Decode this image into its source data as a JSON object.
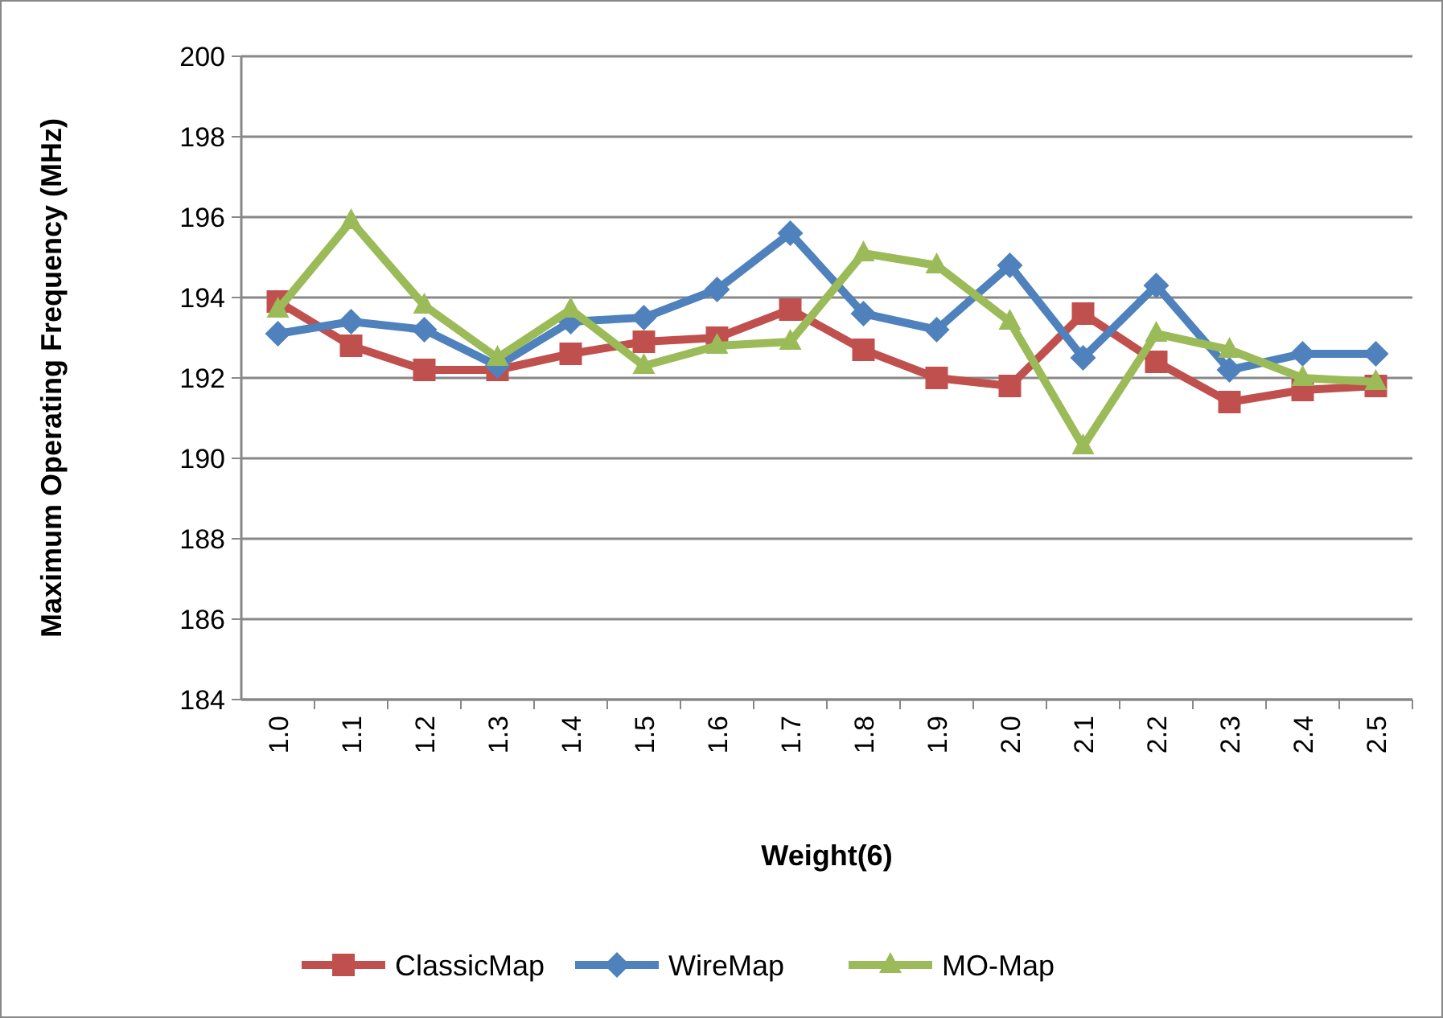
{
  "chart_data": {
    "type": "line",
    "xlabel": "Weight(6)",
    "ylabel": "Maximum Operating Frequency (MHz)",
    "categories": [
      "1.0",
      "1.1",
      "1.2",
      "1.3",
      "1.4",
      "1.5",
      "1.6",
      "1.7",
      "1.8",
      "1.9",
      "2.0",
      "2.1",
      "2.2",
      "2.3",
      "2.4",
      "2.5"
    ],
    "ylim": [
      184,
      200
    ],
    "yticks": [
      184,
      186,
      188,
      190,
      192,
      194,
      196,
      198,
      200
    ],
    "grid": "y",
    "legend": "bottom",
    "series": [
      {
        "name": "ClassicMap",
        "color": "#c0504d",
        "marker": "square",
        "values": [
          193.9,
          192.8,
          192.2,
          192.2,
          192.6,
          192.9,
          193.0,
          193.7,
          192.7,
          192.0,
          191.8,
          193.6,
          192.4,
          191.4,
          191.7,
          191.8
        ]
      },
      {
        "name": "WireMap",
        "color": "#4f81bd",
        "marker": "diamond",
        "values": [
          193.1,
          193.4,
          193.2,
          192.3,
          193.4,
          193.5,
          194.2,
          195.6,
          193.6,
          193.2,
          194.8,
          192.5,
          194.3,
          192.2,
          192.6,
          192.6
        ]
      },
      {
        "name": "MO-Map",
        "color": "#9bbb59",
        "marker": "triangle",
        "values": [
          193.7,
          195.9,
          193.8,
          192.5,
          193.7,
          192.3,
          192.8,
          192.9,
          195.1,
          194.8,
          193.4,
          190.3,
          193.1,
          192.7,
          192.0,
          191.9
        ]
      }
    ]
  }
}
